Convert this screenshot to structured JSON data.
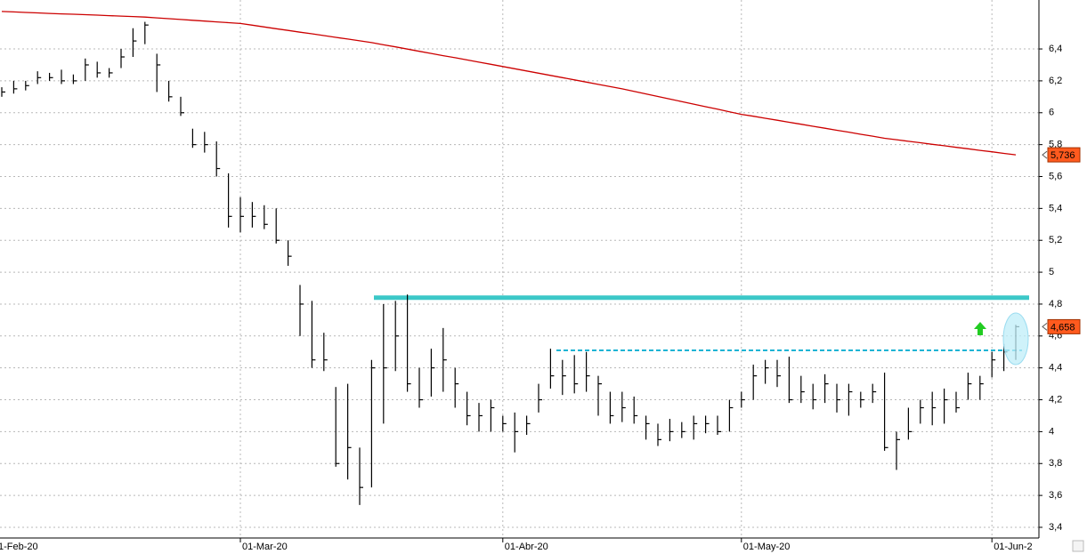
{
  "chart_data": {
    "type": "ohlc",
    "categories": [
      "1-Feb-20",
      null,
      null,
      null,
      null,
      null,
      null,
      null,
      null,
      null,
      null,
      null,
      null,
      null,
      null,
      null,
      null,
      null,
      null,
      null,
      "01-Mar-20",
      null,
      null,
      null,
      null,
      null,
      null,
      null,
      null,
      null,
      null,
      null,
      null,
      null,
      null,
      null,
      null,
      null,
      null,
      null,
      null,
      null,
      "01-Abr-20",
      null,
      null,
      null,
      null,
      null,
      null,
      null,
      null,
      null,
      null,
      null,
      null,
      null,
      null,
      null,
      null,
      null,
      null,
      null,
      "01-May-20",
      null,
      null,
      null,
      null,
      null,
      null,
      null,
      null,
      null,
      null,
      null,
      null,
      null,
      null,
      null,
      null,
      null,
      null,
      null,
      null,
      "01-Jun-2",
      null,
      null
    ],
    "series": [
      {
        "type": "ohlc",
        "color": "#000000",
        "high": [
          6.16,
          6.2,
          6.2,
          6.26,
          6.25,
          6.27,
          6.24,
          6.34,
          6.32,
          6.28,
          6.4,
          6.53,
          6.57,
          6.37,
          6.2,
          6.1,
          5.9,
          5.88,
          5.82,
          5.62,
          5.47,
          5.44,
          5.42,
          5.4,
          5.2,
          4.92,
          4.82,
          4.62,
          4.28,
          4.3,
          3.9,
          4.45,
          4.8,
          4.82,
          4.86,
          4.4,
          4.52,
          4.65,
          4.4,
          4.25,
          4.18,
          4.2,
          4.1,
          4.12,
          4.1,
          4.3,
          4.52,
          4.45,
          4.48,
          4.5,
          4.35,
          4.25,
          4.25,
          4.22,
          4.1,
          4.05,
          4.08,
          4.06,
          4.1,
          4.1,
          4.1,
          4.2,
          4.25,
          4.42,
          4.45,
          4.45,
          4.47,
          4.35,
          4.3,
          4.36,
          4.3,
          4.3,
          4.25,
          4.3,
          4.37,
          4.0,
          4.15,
          4.2,
          4.25,
          4.27,
          4.25,
          4.37,
          4.35,
          4.5,
          4.55,
          4.67
        ],
        "low": [
          6.1,
          6.12,
          6.14,
          6.18,
          6.2,
          6.18,
          6.18,
          6.2,
          6.22,
          6.22,
          6.28,
          6.35,
          6.43,
          6.13,
          6.07,
          5.98,
          5.78,
          5.75,
          5.6,
          5.28,
          5.25,
          5.28,
          5.27,
          5.18,
          5.04,
          4.6,
          4.4,
          4.38,
          3.78,
          3.7,
          3.54,
          3.65,
          4.05,
          4.38,
          4.25,
          4.15,
          4.22,
          4.25,
          4.15,
          4.04,
          4.0,
          4.0,
          4.0,
          3.87,
          3.98,
          4.12,
          4.27,
          4.23,
          4.24,
          4.25,
          4.1,
          4.05,
          4.06,
          4.05,
          3.95,
          3.91,
          3.94,
          3.96,
          3.95,
          3.99,
          3.98,
          4.0,
          4.15,
          4.2,
          4.3,
          4.28,
          4.18,
          4.18,
          4.14,
          4.18,
          4.12,
          4.1,
          4.15,
          4.18,
          3.88,
          3.76,
          3.95,
          4.05,
          4.04,
          4.05,
          4.12,
          4.2,
          4.2,
          4.34,
          4.38,
          4.45
        ],
        "close": [
          6.13,
          6.15,
          6.17,
          6.22,
          6.22,
          6.2,
          6.2,
          6.3,
          6.25,
          6.25,
          6.35,
          6.45,
          6.55,
          6.3,
          6.1,
          6.0,
          5.8,
          5.8,
          5.65,
          5.35,
          5.35,
          5.35,
          5.3,
          5.2,
          5.1,
          4.8,
          4.45,
          4.45,
          3.8,
          3.9,
          3.65,
          4.4,
          4.4,
          4.6,
          4.3,
          4.2,
          4.4,
          4.45,
          4.3,
          4.1,
          4.1,
          4.15,
          4.05,
          4.0,
          4.05,
          4.2,
          4.35,
          4.35,
          4.3,
          4.35,
          4.3,
          4.1,
          4.15,
          4.1,
          4.05,
          3.95,
          4.0,
          4.0,
          4.05,
          4.05,
          4.0,
          4.15,
          4.2,
          4.35,
          4.4,
          4.35,
          4.2,
          4.25,
          4.2,
          4.3,
          4.2,
          4.25,
          4.2,
          4.25,
          3.9,
          3.95,
          4.0,
          4.15,
          4.15,
          4.2,
          4.15,
          4.3,
          4.3,
          4.45,
          4.5,
          4.658
        ]
      },
      {
        "type": "line",
        "color": "#cc0000",
        "values": [
          6.635,
          6.632,
          6.629,
          6.626,
          6.623,
          6.62,
          6.618,
          6.615,
          6.612,
          6.609,
          6.606,
          6.603,
          6.6,
          6.595,
          6.59,
          6.585,
          6.58,
          6.575,
          6.57,
          6.565,
          6.56,
          6.549,
          6.538,
          6.527,
          6.516,
          6.505,
          6.495,
          6.484,
          6.473,
          6.462,
          6.451,
          6.44,
          6.426,
          6.413,
          6.399,
          6.385,
          6.372,
          6.358,
          6.345,
          6.331,
          6.317,
          6.304,
          6.29,
          6.276,
          6.262,
          6.248,
          6.234,
          6.22,
          6.206,
          6.192,
          6.178,
          6.164,
          6.15,
          6.134,
          6.118,
          6.102,
          6.086,
          6.07,
          6.054,
          6.038,
          6.022,
          6.006,
          5.99,
          5.978,
          5.965,
          5.953,
          5.94,
          5.928,
          5.915,
          5.903,
          5.89,
          5.878,
          5.865,
          5.853,
          5.84,
          5.831,
          5.821,
          5.812,
          5.802,
          5.793,
          5.783,
          5.774,
          5.764,
          5.755,
          5.745,
          5.736
        ]
      }
    ],
    "levels": [
      {
        "value": 4.84,
        "color": "#3cc8c8",
        "style": "solid"
      },
      {
        "value": 4.51,
        "color": "#1cb4d4",
        "style": "dashed"
      }
    ],
    "price_tags": [
      {
        "label": "5,736",
        "value": 5.736,
        "color": "#ff5a1e"
      },
      {
        "label": "4,658",
        "value": 4.658,
        "color": "#ff5a1e"
      }
    ],
    "ylim": [
      3.333,
      6.707
    ],
    "yticks": [
      {
        "value": 3.4,
        "label": "3,4"
      },
      {
        "value": 3.6,
        "label": "3,6"
      },
      {
        "value": 3.8,
        "label": "3,8"
      },
      4,
      {
        "value": 4.2,
        "label": "4,2"
      },
      {
        "value": 4.4,
        "label": "4,4"
      },
      {
        "value": 4.6,
        "label": "4,6"
      },
      {
        "value": 4.8,
        "label": "4,8"
      },
      5,
      {
        "value": 5.2,
        "label": "5,2"
      },
      {
        "value": 5.4,
        "label": "5,4"
      },
      {
        "value": 5.6,
        "label": "5,6"
      },
      {
        "value": 5.8,
        "label": "5,8"
      },
      6,
      {
        "value": 6.2,
        "label": "6,2"
      },
      {
        "value": 6.4,
        "label": "6,4"
      }
    ],
    "grid": true
  }
}
